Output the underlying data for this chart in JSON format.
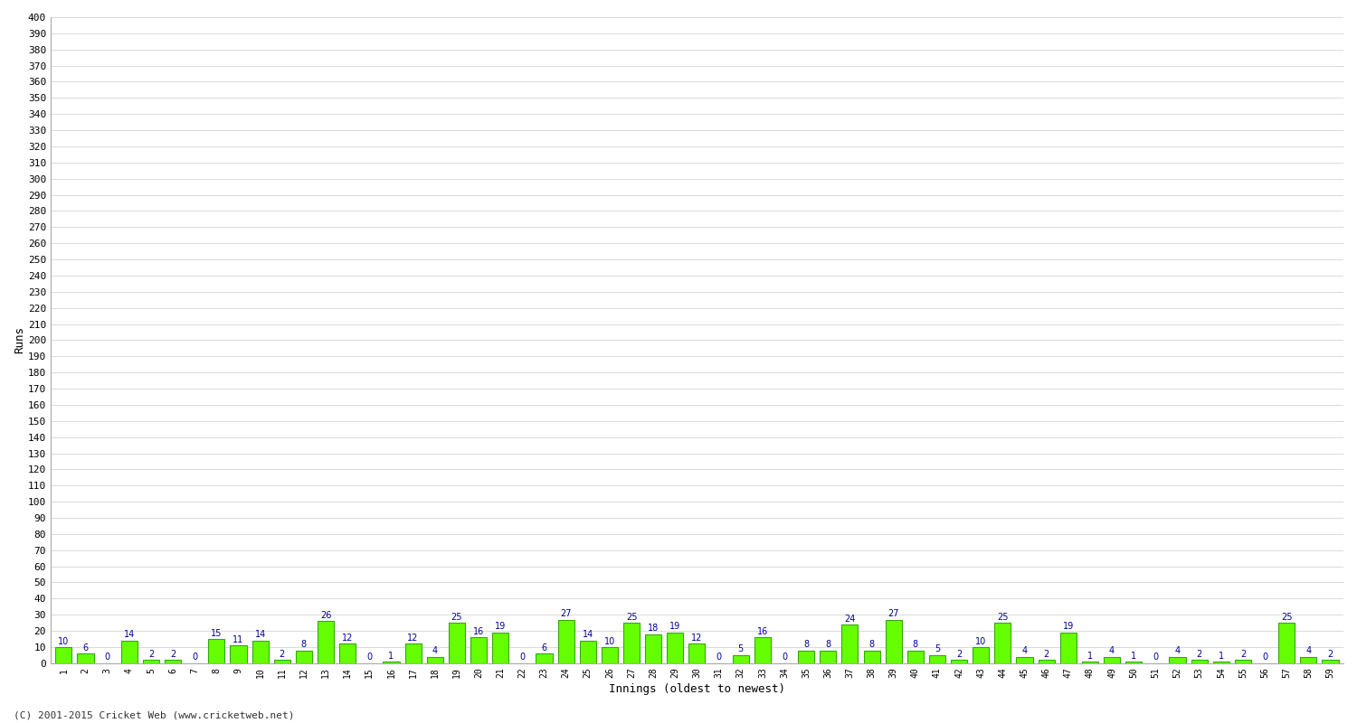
{
  "xlabel": "Innings (oldest to newest)",
  "ylabel": "Runs",
  "bar_color": "#66ff00",
  "bar_edge_color": "#33aa00",
  "label_color": "#000099",
  "background_color": "#ffffff",
  "grid_color": "#cccccc",
  "ylim": [
    0,
    400
  ],
  "values": [
    10,
    6,
    0,
    14,
    2,
    2,
    0,
    15,
    11,
    14,
    2,
    8,
    26,
    12,
    0,
    1,
    12,
    4,
    25,
    16,
    19,
    0,
    6,
    27,
    14,
    10,
    25,
    18,
    19,
    12,
    0,
    5,
    16,
    0,
    8,
    8,
    24,
    8,
    27,
    8,
    5,
    2,
    10,
    25,
    4,
    2,
    19,
    1,
    4,
    1,
    0,
    4,
    2,
    1,
    2,
    0,
    25,
    4,
    2
  ],
  "x_labels": [
    "1",
    "2",
    "3",
    "4",
    "5",
    "6",
    "7",
    "8",
    "9",
    "10",
    "11",
    "12",
    "13",
    "14",
    "15",
    "16",
    "17",
    "18",
    "19",
    "20",
    "21",
    "22",
    "23",
    "24",
    "25",
    "26",
    "27",
    "28",
    "29",
    "30",
    "31",
    "32",
    "33",
    "34",
    "35",
    "36",
    "37",
    "38",
    "39",
    "40",
    "41",
    "42",
    "43",
    "44",
    "45",
    "46",
    "47",
    "48",
    "49",
    "50",
    "51",
    "52",
    "53",
    "54",
    "55",
    "56",
    "57",
    "58",
    "59"
  ],
  "footer": "(C) 2001-2015 Cricket Web (www.cricketweb.net)",
  "figsize": [
    15.0,
    8.0
  ],
  "dpi": 100
}
